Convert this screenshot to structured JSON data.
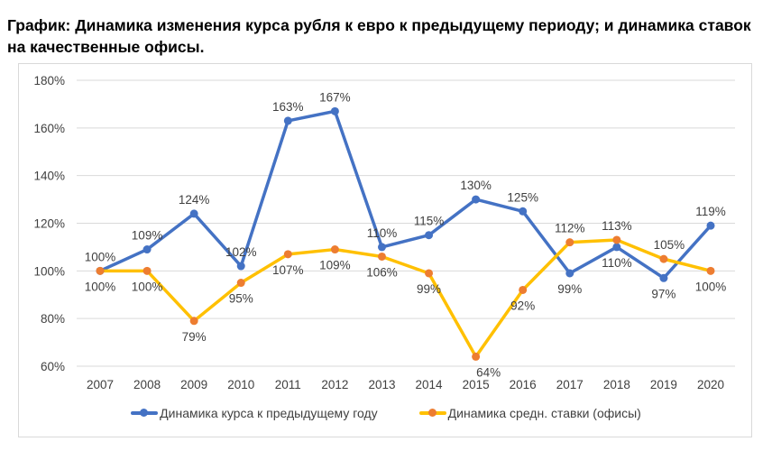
{
  "title": "График: Динамика изменения курса рубля к евро к предыдущему периоду; и динамика ставок на качественные офисы.",
  "chart_data": {
    "type": "line",
    "title": "График: Динамика изменения курса рубля к евро к предыдущему периоду; и динамика ставок на качественные офисы.",
    "xlabel": "",
    "ylabel": "",
    "x": [
      "2007",
      "2008",
      "2009",
      "2010",
      "2011",
      "2012",
      "2013",
      "2014",
      "2015",
      "2016",
      "2017",
      "2018",
      "2019",
      "2020"
    ],
    "ylim": [
      60,
      180
    ],
    "yticks": [
      60,
      80,
      100,
      120,
      140,
      160,
      180
    ],
    "ytick_labels": [
      "60%",
      "80%",
      "100%",
      "120%",
      "140%",
      "160%",
      "180%"
    ],
    "grid": true,
    "legend_position": "bottom",
    "series": [
      {
        "name": "Динамика курса к предыдущему году",
        "line_color": "#4472C4",
        "marker_color": "#4472C4",
        "values": [
          100,
          109,
          124,
          102,
          163,
          167,
          110,
          115,
          130,
          125,
          99,
          110,
          97,
          119
        ],
        "labels": [
          "100%",
          "109%",
          "124%",
          "102%",
          "163%",
          "167%",
          "110%",
          "115%",
          "130%",
          "125%",
          "99%",
          "110%",
          "97%",
          "119%"
        ]
      },
      {
        "name": "Динамика средн. ставки (офисы)",
        "line_color": "#FFC000",
        "marker_color": "#ED7D31",
        "values": [
          100,
          100,
          79,
          95,
          107,
          109,
          106,
          99,
          64,
          92,
          112,
          113,
          105,
          100
        ],
        "labels": [
          "100%",
          "100%",
          "79%",
          "95%",
          "107%",
          "109%",
          "106%",
          "99%",
          "64%",
          "92%",
          "112%",
          "113%",
          "105%",
          "100%"
        ]
      }
    ]
  }
}
